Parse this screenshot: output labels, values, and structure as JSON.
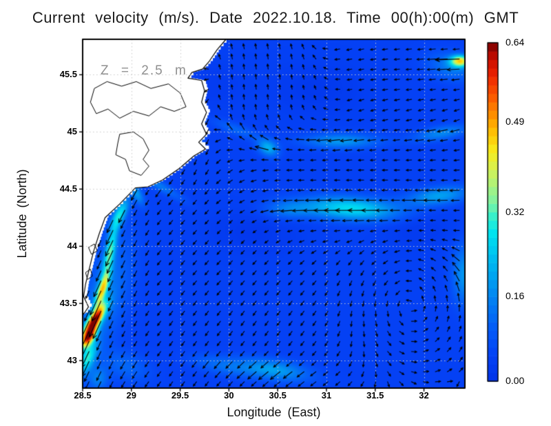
{
  "title": "Current velocity (m/s). Date 2022.10.18. Time 00(h):00(m) GMT",
  "annotation": "Z = 2.5 m",
  "axes": {
    "xlabel": "Longitude (East)",
    "ylabel": "Latitude (North)",
    "x_ticks": [
      28.5,
      29,
      29.5,
      30,
      30.5,
      31,
      31.5,
      32
    ],
    "x_tick_labels": [
      "28.5",
      "29",
      "29.5",
      "30",
      "30.5",
      "31",
      "31.5",
      "32"
    ],
    "y_ticks": [
      43,
      43.5,
      44,
      44.5,
      45,
      45.5
    ],
    "y_tick_labels": [
      "43",
      "43.5",
      "44",
      "44.5",
      "45",
      "45.5"
    ],
    "grid": "dotted-white-0.5deg"
  },
  "colorbar": {
    "labels": [
      "0.00",
      "0.16",
      "0.32",
      "0.49",
      "0.64"
    ],
    "values": [
      0,
      0.16,
      0.32,
      0.49,
      0.64
    ],
    "min": 0,
    "max": 0.64,
    "units": "m/s"
  },
  "chart_data": {
    "type": "heatmap",
    "subtype": "ocean-current-speed-with-quiver-arrows",
    "variable": "current speed (m/s)",
    "depth_m": 2.5,
    "date": "2022.10.18",
    "time_gmt": "00(h):00(m)",
    "lon_range": [
      28.5,
      32.42
    ],
    "lat_range": [
      42.76,
      45.81
    ],
    "speed_range_ms": [
      0,
      0.64
    ],
    "background_speed": 0.045,
    "colormap_stops": [
      [
        0.0,
        "#0233e8"
      ],
      [
        0.08,
        "#0543f6"
      ],
      [
        0.16,
        "#045ef8"
      ],
      [
        0.24,
        "#0380f2"
      ],
      [
        0.31,
        "#01a4f0"
      ],
      [
        0.38,
        "#00c6f2"
      ],
      [
        0.44,
        "#00e4f0"
      ],
      [
        0.49,
        "#3df2c8"
      ],
      [
        0.53,
        "#80f2a2"
      ],
      [
        0.58,
        "#aef27c"
      ],
      [
        0.63,
        "#d8f250"
      ],
      [
        0.68,
        "#f8ec1c"
      ],
      [
        0.73,
        "#ffc606"
      ],
      [
        0.78,
        "#ff9600"
      ],
      [
        0.84,
        "#fb5c00"
      ],
      [
        0.9,
        "#ef2600"
      ],
      [
        0.95,
        "#cb0e00"
      ],
      [
        1.0,
        "#7c0000"
      ]
    ],
    "speed_blobs": [
      [
        28.62,
        43.35,
        0.055,
        0.17,
        -38,
        0.52
      ],
      [
        28.56,
        43.2,
        0.05,
        0.11,
        -38,
        0.42
      ],
      [
        28.7,
        43.62,
        0.045,
        0.16,
        -22,
        0.32
      ],
      [
        28.78,
        43.95,
        0.05,
        0.22,
        -14,
        0.24
      ],
      [
        28.88,
        44.28,
        0.06,
        0.16,
        -30,
        0.22
      ],
      [
        29.06,
        44.46,
        0.11,
        0.05,
        -60,
        0.13
      ],
      [
        28.72,
        43.55,
        0.22,
        0.55,
        -20,
        0.1
      ],
      [
        28.55,
        43.02,
        0.07,
        0.16,
        -28,
        0.22
      ],
      [
        28.66,
        42.84,
        0.1,
        0.1,
        -20,
        0.1
      ],
      [
        29.63,
        44.86,
        0.05,
        0.045,
        0,
        0.3
      ],
      [
        29.72,
        45.12,
        0.028,
        0.22,
        5,
        0.09
      ],
      [
        29.25,
        44.55,
        0.3,
        0.045,
        -27,
        0.1
      ],
      [
        31.25,
        44.33,
        0.48,
        0.1,
        -3,
        0.23
      ],
      [
        32.15,
        44.44,
        0.32,
        0.08,
        6,
        0.15
      ],
      [
        30.6,
        44.32,
        0.25,
        0.08,
        0,
        0.09
      ],
      [
        30.4,
        44.86,
        0.11,
        0.07,
        -20,
        0.17
      ],
      [
        31.15,
        44.92,
        0.38,
        0.065,
        0,
        0.14
      ],
      [
        32.18,
        44.99,
        0.28,
        0.06,
        8,
        0.12
      ],
      [
        30.08,
        45.02,
        0.26,
        0.05,
        -17,
        0.07
      ],
      [
        32.37,
        45.62,
        0.1,
        0.05,
        0,
        0.36
      ],
      [
        32.28,
        45.57,
        0.25,
        0.12,
        -10,
        0.1
      ],
      [
        32.42,
        43.75,
        0.13,
        0.26,
        0,
        0.14
      ],
      [
        30.45,
        42.92,
        0.38,
        0.09,
        -7,
        0.15
      ],
      [
        29.9,
        42.96,
        0.3,
        0.08,
        -10,
        0.07
      ],
      [
        28.95,
        42.95,
        0.25,
        0.13,
        -15,
        0.07
      ],
      [
        30.25,
        44.12,
        0.45,
        0.18,
        -5,
        -0.028
      ],
      [
        30.9,
        45.38,
        0.45,
        0.22,
        0,
        -0.026
      ],
      [
        31.95,
        44.15,
        0.35,
        0.15,
        0,
        -0.02
      ],
      [
        29.85,
        45.42,
        0.3,
        0.2,
        0,
        -0.018
      ]
    ],
    "flow_components": [
      {
        "dir": [
          -0.45,
          -0.89
        ],
        "center": [
          28.75,
          43.7
        ],
        "sigma": [
          0.3,
          0.85
        ],
        "rot": -15,
        "w": 3.0
      },
      {
        "dir": [
          -0.71,
          -0.71
        ],
        "center": [
          29.6,
          44.15
        ],
        "sigma": [
          0.6,
          0.55
        ],
        "rot": 0,
        "w": 1.1
      },
      {
        "dir": [
          -1,
          0.05
        ],
        "center": [
          31.35,
          44.38
        ],
        "sigma": [
          0.95,
          0.24
        ],
        "rot": 0,
        "w": 1.6
      },
      {
        "dir": [
          -1,
          -0.06
        ],
        "center": [
          31.3,
          44.92
        ],
        "sigma": [
          0.85,
          0.17
        ],
        "rot": 0,
        "w": 1.5
      },
      {
        "dir": [
          -1,
          0
        ],
        "center": [
          31.6,
          44.63
        ],
        "sigma": [
          0.95,
          0.2
        ],
        "rot": 0,
        "w": 1.0
      },
      {
        "dir": [
          -0.08,
          1
        ],
        "center": [
          30.35,
          45.38
        ],
        "sigma": [
          0.45,
          0.4
        ],
        "rot": 0,
        "w": 1.6
      },
      {
        "dir": [
          -1,
          -0.05
        ],
        "center": [
          31.95,
          45.55
        ],
        "sigma": [
          0.6,
          0.26
        ],
        "rot": 0,
        "w": 1.4
      },
      {
        "dir": [
          -1,
          0
        ],
        "center": [
          32.3,
          45.62
        ],
        "sigma": [
          0.28,
          0.09
        ],
        "rot": 0,
        "w": 2.0
      },
      {
        "dir": [
          -0.62,
          -0.78
        ],
        "center": [
          29.9,
          43.1
        ],
        "sigma": [
          1.0,
          0.4
        ],
        "rot": 0,
        "w": 1.0
      },
      {
        "dir": [
          -0.9,
          -0.44
        ],
        "center": [
          30.5,
          42.92
        ],
        "sigma": [
          0.55,
          0.16
        ],
        "rot": -5,
        "w": 1.2
      },
      {
        "dir": [
          -0.3,
          -0.95
        ],
        "center": [
          29.68,
          45.02
        ],
        "sigma": [
          0.16,
          0.45
        ],
        "rot": 0,
        "w": 1.3
      },
      {
        "dir": [
          -0.55,
          -0.45
        ],
        "center": [
          30.5,
          44.6
        ],
        "sigma": [
          3.0,
          3.0
        ],
        "rot": 0,
        "w": 0.12
      }
    ],
    "vortices": [
      {
        "center": [
          31.85,
          43.5
        ],
        "sigma": 0.42,
        "w": 1.6,
        "sense": 1
      }
    ],
    "arrow_grid": {
      "lon_start": 28.565,
      "lon_step": 0.1225,
      "lat_start": 42.815,
      "lat_step": 0.0882
    },
    "coastline": [
      [
        29.97,
        45.81
      ],
      [
        29.88,
        45.72
      ],
      [
        29.8,
        45.62
      ],
      [
        29.73,
        45.55
      ],
      [
        29.62,
        45.52
      ],
      [
        29.58,
        45.47
      ],
      [
        29.72,
        45.45
      ],
      [
        29.75,
        45.36
      ],
      [
        29.72,
        45.26
      ],
      [
        29.77,
        45.17
      ],
      [
        29.72,
        45.07
      ],
      [
        29.77,
        44.98
      ],
      [
        29.69,
        44.91
      ],
      [
        29.76,
        44.85
      ],
      [
        29.64,
        44.79
      ],
      [
        29.49,
        44.68
      ],
      [
        29.32,
        44.58
      ],
      [
        29.17,
        44.52
      ],
      [
        29.04,
        44.51
      ],
      [
        28.88,
        44.37
      ],
      [
        28.73,
        44.25
      ],
      [
        28.67,
        44.11
      ],
      [
        28.61,
        43.95
      ],
      [
        28.57,
        43.81
      ],
      [
        28.53,
        43.67
      ],
      [
        28.51,
        43.56
      ],
      [
        28.56,
        43.47
      ],
      [
        28.52,
        43.42
      ],
      [
        28.5,
        43.4
      ]
    ],
    "lakes": [
      [
        [
          28.62,
          45.38
        ],
        [
          28.75,
          45.44
        ],
        [
          28.9,
          45.4
        ],
        [
          29.05,
          45.44
        ],
        [
          29.2,
          45.38
        ],
        [
          29.38,
          45.42
        ],
        [
          29.5,
          45.34
        ],
        [
          29.56,
          45.22
        ],
        [
          29.44,
          45.18
        ],
        [
          29.3,
          45.22
        ],
        [
          29.18,
          45.14
        ],
        [
          29.02,
          45.18
        ],
        [
          28.88,
          45.12
        ],
        [
          28.76,
          45.2
        ],
        [
          28.64,
          45.16
        ],
        [
          28.58,
          45.26
        ]
      ],
      [
        [
          28.88,
          44.98
        ],
        [
          29.02,
          45.0
        ],
        [
          29.12,
          44.94
        ],
        [
          29.18,
          44.84
        ],
        [
          29.12,
          44.76
        ],
        [
          29.18,
          44.7
        ],
        [
          29.1,
          44.62
        ],
        [
          28.98,
          44.66
        ],
        [
          28.94,
          44.76
        ],
        [
          28.84,
          44.8
        ],
        [
          28.86,
          44.9
        ]
      ],
      [
        [
          28.56,
          43.99
        ],
        [
          28.62,
          44.02
        ],
        [
          28.65,
          43.96
        ],
        [
          28.59,
          43.93
        ]
      ],
      [
        [
          28.53,
          43.77
        ],
        [
          28.58,
          43.8
        ],
        [
          28.6,
          43.74
        ],
        [
          28.55,
          43.71
        ]
      ]
    ]
  }
}
